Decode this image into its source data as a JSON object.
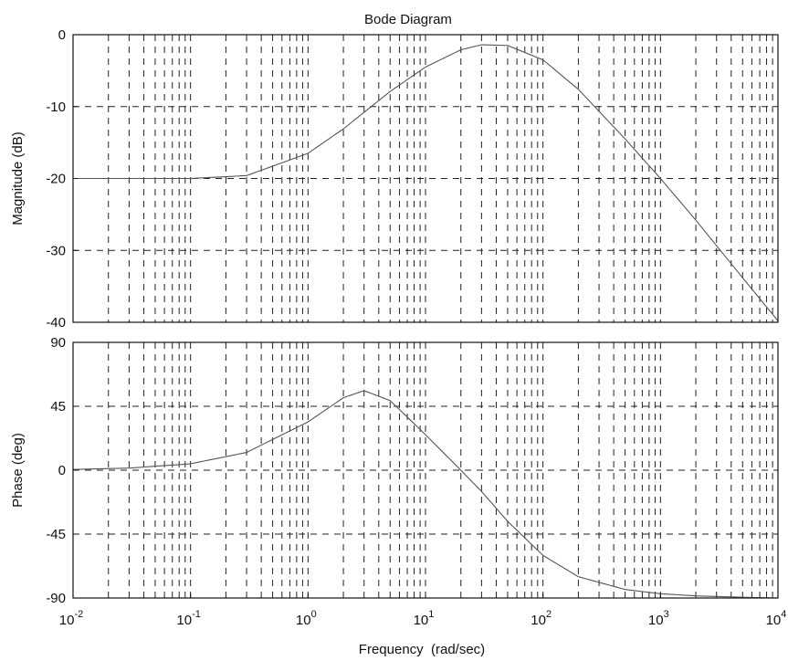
{
  "chart_data": {
    "type": "line",
    "title": "Bode Diagram",
    "xlabel": "Frequency  (rad/sec)",
    "xscale": "log",
    "xlim": [
      0.01,
      10000
    ],
    "x_ticks": [
      {
        "base": "10",
        "exp": "-2"
      },
      {
        "base": "10",
        "exp": "-1"
      },
      {
        "base": "10",
        "exp": "0"
      },
      {
        "base": "10",
        "exp": "1"
      },
      {
        "base": "10",
        "exp": "2"
      },
      {
        "base": "10",
        "exp": "3"
      },
      {
        "base": "10",
        "exp": "4"
      }
    ],
    "grid": true,
    "panels": [
      {
        "id": "magnitude",
        "ylabel": "Magnitude (dB)",
        "ylim": [
          -40,
          0
        ],
        "yticks": [
          "0",
          "-10",
          "-20",
          "-30",
          "-40"
        ],
        "series": [
          {
            "x": [
              0.01,
              0.03,
              0.1,
              0.3,
              1,
              2,
              3,
              5,
              10,
              20,
              30,
              50,
              100,
              200,
              500,
              1000,
              2000,
              5000,
              10000
            ],
            "y": [
              -20,
              -20,
              -20,
              -19.6,
              -16.5,
              -13.1,
              -10.8,
              -7.9,
              -4.5,
              -2.1,
              -1.4,
              -1.5,
              -3.5,
              -7.6,
              -14.5,
              -20.0,
              -25.8,
              -33.8,
              -39.8
            ]
          }
        ]
      },
      {
        "id": "phase",
        "ylabel": "Phase (deg)",
        "ylim": [
          -90,
          90
        ],
        "yticks": [
          "90",
          "45",
          "0",
          "-45",
          "-90"
        ],
        "series": [
          {
            "x": [
              0.01,
              0.03,
              0.1,
              0.3,
              1,
              2,
              3,
              5,
              10,
              20,
              30,
              50,
              100,
              200,
              500,
              1000,
              2000,
              5000,
              10000
            ],
            "y": [
              0.5,
              1.5,
              4.5,
              12.5,
              34,
              51,
              56,
              49,
              25,
              0,
              -15,
              -36,
              -60,
              -75,
              -84,
              -87,
              -88.5,
              -89.5,
              -90
            ]
          }
        ]
      }
    ]
  }
}
